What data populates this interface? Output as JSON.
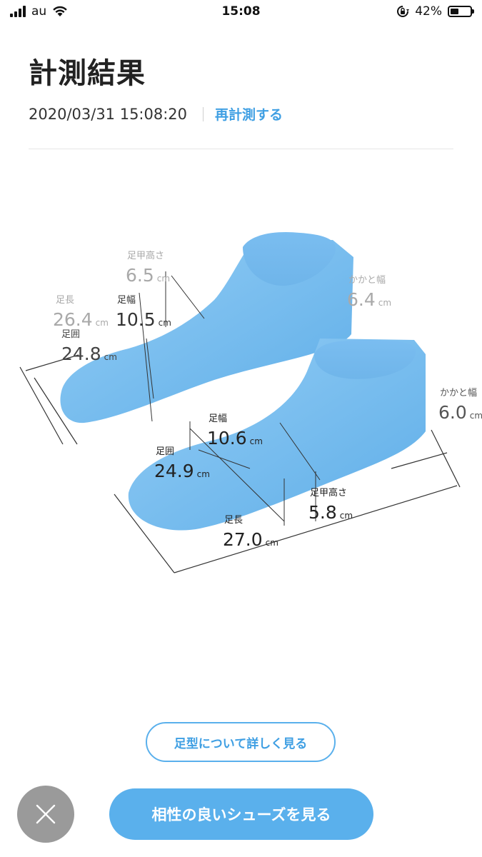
{
  "status_bar": {
    "carrier": "au",
    "time": "15:08",
    "battery_percent": "42%",
    "battery_level": 0.42
  },
  "header": {
    "title": "計測結果",
    "timestamp": "2020/03/31 15:08:20",
    "remeasure_label": "再計測する"
  },
  "left_foot": {
    "instep_height": {
      "name": "足甲高さ",
      "value": "6.5",
      "unit": "cm"
    },
    "heel_width": {
      "name": "かかと幅",
      "value": "6.4",
      "unit": "cm"
    },
    "length": {
      "name": "足長",
      "value": "26.4",
      "unit": "cm"
    },
    "width": {
      "name": "足幅",
      "value": "10.5",
      "unit": "cm"
    },
    "girth": {
      "name": "足囲",
      "value": "24.8",
      "unit": "cm"
    }
  },
  "right_foot": {
    "heel_width": {
      "name": "かかと幅",
      "value": "6.0",
      "unit": "cm"
    },
    "width": {
      "name": "足幅",
      "value": "10.6",
      "unit": "cm"
    },
    "girth": {
      "name": "足囲",
      "value": "24.9",
      "unit": "cm"
    },
    "instep_height": {
      "name": "足甲高さ",
      "value": "5.8",
      "unit": "cm"
    },
    "length": {
      "name": "足長",
      "value": "27.0",
      "unit": "cm"
    }
  },
  "actions": {
    "details_label": "足型について詳しく見る",
    "shoes_label": "相性の良いシューズを見る",
    "close_icon": "close-icon"
  },
  "colors": {
    "accent": "#5ab0ec",
    "foot": "#7fc2f1",
    "close_bg": "#9a9a9a"
  }
}
